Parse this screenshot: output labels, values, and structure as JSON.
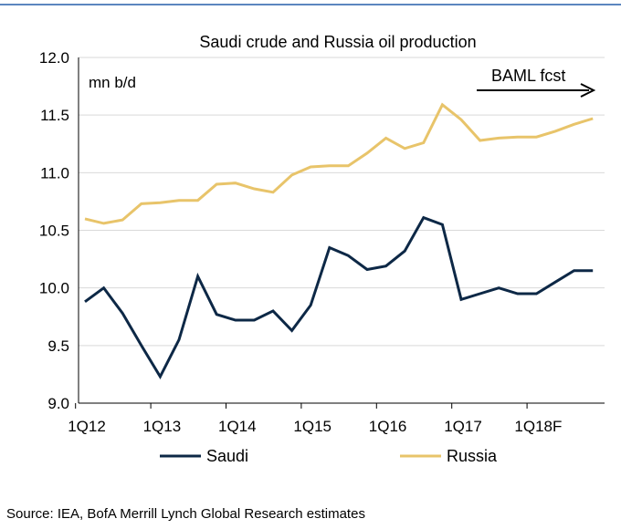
{
  "chart_data": {
    "type": "line",
    "title": "Saudi crude and Russia oil production",
    "unit_label": "mn b/d",
    "ylim": [
      9.0,
      12.0
    ],
    "y_ticks": [
      "9.0",
      "9.5",
      "10.0",
      "10.5",
      "11.0",
      "11.5",
      "12.0"
    ],
    "y_tick_values": [
      9.0,
      9.5,
      10.0,
      10.5,
      11.0,
      11.5,
      12.0
    ],
    "x_tick_labels": [
      "1Q12",
      "1Q13",
      "1Q14",
      "1Q15",
      "1Q16",
      "1Q17",
      "1Q18F"
    ],
    "categories": [
      "1Q12",
      "2Q12",
      "3Q12",
      "4Q12",
      "1Q13",
      "2Q13",
      "3Q13",
      "4Q13",
      "1Q14",
      "2Q14",
      "3Q14",
      "4Q14",
      "1Q15",
      "2Q15",
      "3Q15",
      "4Q15",
      "1Q16",
      "2Q16",
      "3Q16",
      "4Q16",
      "1Q17",
      "2Q17",
      "3Q17",
      "4Q17",
      "1Q18F",
      "2Q18F",
      "3Q18F",
      "4Q18F"
    ],
    "series": [
      {
        "name": "Saudi",
        "color": "#0d2846",
        "values": [
          9.88,
          10.0,
          9.78,
          9.5,
          9.23,
          9.55,
          10.1,
          9.77,
          9.72,
          9.72,
          9.8,
          9.63,
          9.85,
          10.35,
          10.28,
          10.16,
          10.19,
          10.32,
          10.61,
          10.55,
          9.9,
          9.95,
          10.0,
          9.95,
          9.95,
          10.05,
          10.15,
          10.15
        ]
      },
      {
        "name": "Russia",
        "color": "#e8c46a",
        "values": [
          10.6,
          10.56,
          10.59,
          10.73,
          10.74,
          10.76,
          10.76,
          10.9,
          10.91,
          10.86,
          10.83,
          10.98,
          11.05,
          11.06,
          11.06,
          11.17,
          11.3,
          11.21,
          11.26,
          11.59,
          11.46,
          11.28,
          11.3,
          11.31,
          11.31,
          11.36,
          11.42,
          11.47
        ]
      }
    ],
    "annotation": "BAML fcst",
    "source": "Source: IEA, BofA Merrill Lynch Global Research estimates",
    "grid": true,
    "legend_position": "bottom"
  }
}
